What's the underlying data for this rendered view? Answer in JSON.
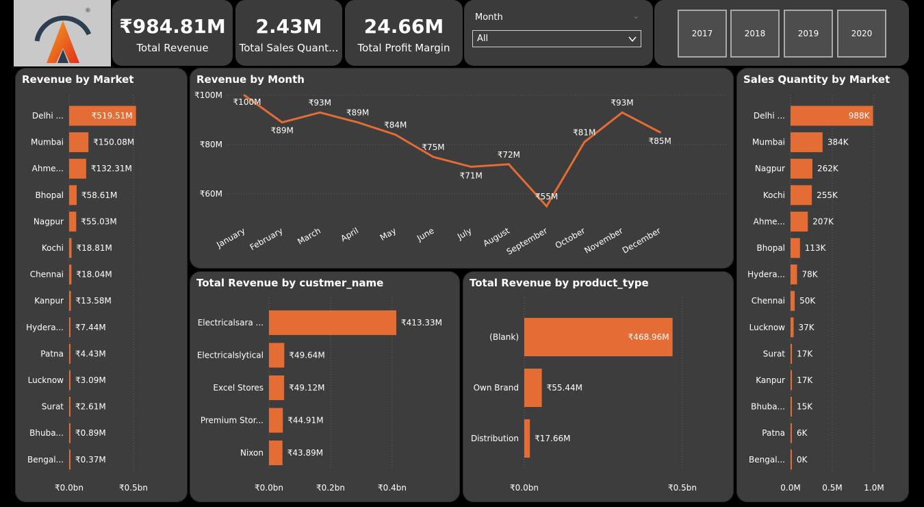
{
  "kpis": {
    "revenue": {
      "value": "₹984.81M",
      "label": "Total Revenue"
    },
    "quantity": {
      "value": "2.43M",
      "label": "Total Sales Quant..."
    },
    "profit": {
      "value": "24.66M",
      "label": "Total Profit Margin"
    }
  },
  "filter": {
    "label": "Month",
    "selected": "All"
  },
  "years": [
    "2017",
    "2018",
    "2019",
    "2020"
  ],
  "revenue_by_market": {
    "title": "Revenue by Market",
    "categories": [
      "Delhi ...",
      "Mumbai",
      "Ahme...",
      "Bhopal",
      "Nagpur",
      "Kochi",
      "Chennai",
      "Kanpur",
      "Hydera...",
      "Patna",
      "Lucknow",
      "Surat",
      "Bhuba...",
      "Bengal..."
    ],
    "values": [
      519.51,
      150.08,
      132.31,
      58.61,
      55.03,
      18.81,
      18.04,
      13.58,
      7.44,
      4.43,
      3.09,
      2.61,
      0.89,
      0.37
    ],
    "labels": [
      "₹519.51M",
      "₹150.08M",
      "₹132.31M",
      "₹58.61M",
      "₹55.03M",
      "₹18.81M",
      "₹18.04M",
      "₹13.58M",
      "₹7.44M",
      "₹4.43M",
      "₹3.09M",
      "₹2.61M",
      "₹0.89M",
      "₹0.37M"
    ],
    "axis_ticks": [
      "₹0.0bn",
      "₹0.5bn"
    ]
  },
  "revenue_by_month": {
    "title": "Revenue by Month",
    "categories": [
      "January",
      "February",
      "March",
      "April",
      "May",
      "June",
      "July",
      "August",
      "September",
      "October",
      "November",
      "December"
    ],
    "values": [
      100,
      89,
      93,
      89,
      84,
      75,
      71,
      72,
      55,
      81,
      93,
      85
    ],
    "labels": [
      "₹100M",
      "₹89M",
      "₹93M",
      "₹89M",
      "₹84M",
      "₹75M",
      "₹71M",
      "₹72M",
      "₹55M",
      "₹81M",
      "₹93M",
      "₹85M"
    ],
    "y_ticks": [
      {
        "v": 100,
        "t": "₹100M"
      },
      {
        "v": 80,
        "t": "₹80M"
      },
      {
        "v": 60,
        "t": "₹60M"
      }
    ]
  },
  "revenue_by_customer": {
    "title": "Total Revenue by custmer_name",
    "categories": [
      "Electricalsara ...",
      "Electricalslytical",
      "Excel Stores",
      "Premium Stor...",
      "Nixon"
    ],
    "values": [
      413.33,
      49.64,
      49.12,
      44.91,
      43.89
    ],
    "labels": [
      "₹413.33M",
      "₹49.64M",
      "₹49.12M",
      "₹44.91M",
      "₹43.89M"
    ],
    "axis_ticks": [
      "₹0.0bn",
      "₹0.2bn",
      "₹0.4bn"
    ]
  },
  "revenue_by_product": {
    "title": "Total Revenue by product_type",
    "categories": [
      "(Blank)",
      "Own Brand",
      "Distribution"
    ],
    "values": [
      468.96,
      55.44,
      17.66
    ],
    "labels": [
      "₹468.96M",
      "₹55.44M",
      "₹17.66M"
    ],
    "axis_ticks": [
      "₹0.0bn",
      "₹0.5bn"
    ]
  },
  "quantity_by_market": {
    "title": "Sales Quantity by Market",
    "categories": [
      "Delhi ...",
      "Mumbai",
      "Nagpur",
      "Kochi",
      "Ahme...",
      "Bhopal",
      "Hydera...",
      "Chennai",
      "Lucknow",
      "Surat",
      "Kanpur",
      "Bhuba...",
      "Patna",
      "Bengal..."
    ],
    "values": [
      988,
      384,
      262,
      255,
      207,
      113,
      78,
      50,
      37,
      17,
      17,
      15,
      6,
      0
    ],
    "labels": [
      "988K",
      "384K",
      "262K",
      "255K",
      "207K",
      "113K",
      "78K",
      "50K",
      "37K",
      "17K",
      "17K",
      "15K",
      "6K",
      "0K"
    ],
    "axis_ticks": [
      "0.0M",
      "0.5M",
      "1.0M"
    ]
  },
  "chart_data": [
    {
      "type": "bar",
      "title": "Revenue by Market",
      "categories": [
        "Delhi ...",
        "Mumbai",
        "Ahme...",
        "Bhopal",
        "Nagpur",
        "Kochi",
        "Chennai",
        "Kanpur",
        "Hydera...",
        "Patna",
        "Lucknow",
        "Surat",
        "Bhuba...",
        "Bengal..."
      ],
      "values": [
        519.51,
        150.08,
        132.31,
        58.61,
        55.03,
        18.81,
        18.04,
        13.58,
        7.44,
        4.43,
        3.09,
        2.61,
        0.89,
        0.37
      ]
    },
    {
      "type": "line",
      "title": "Revenue by Month",
      "categories": [
        "January",
        "February",
        "March",
        "April",
        "May",
        "June",
        "July",
        "August",
        "September",
        "October",
        "November",
        "December"
      ],
      "values": [
        100,
        89,
        93,
        89,
        84,
        75,
        71,
        72,
        55,
        81,
        93,
        85
      ]
    },
    {
      "type": "bar",
      "title": "Total Revenue by custmer_name",
      "categories": [
        "Electricalsara ...",
        "Electricalslytical",
        "Excel Stores",
        "Premium Stor...",
        "Nixon"
      ],
      "values": [
        413.33,
        49.64,
        49.12,
        44.91,
        43.89
      ]
    },
    {
      "type": "bar",
      "title": "Total Revenue by product_type",
      "categories": [
        "(Blank)",
        "Own Brand",
        "Distribution"
      ],
      "values": [
        468.96,
        55.44,
        17.66
      ]
    },
    {
      "type": "bar",
      "title": "Sales Quantity by Market",
      "categories": [
        "Delhi ...",
        "Mumbai",
        "Nagpur",
        "Kochi",
        "Ahme...",
        "Bhopal",
        "Hydera...",
        "Chennai",
        "Lucknow",
        "Surat",
        "Kanpur",
        "Bhuba...",
        "Patna",
        "Bengal..."
      ],
      "values": [
        988,
        384,
        262,
        255,
        207,
        113,
        78,
        50,
        37,
        17,
        17,
        15,
        6,
        0
      ]
    }
  ],
  "colors": {
    "bar": "#e46c35",
    "panel": "#3d3d3d",
    "background": "#000000"
  }
}
